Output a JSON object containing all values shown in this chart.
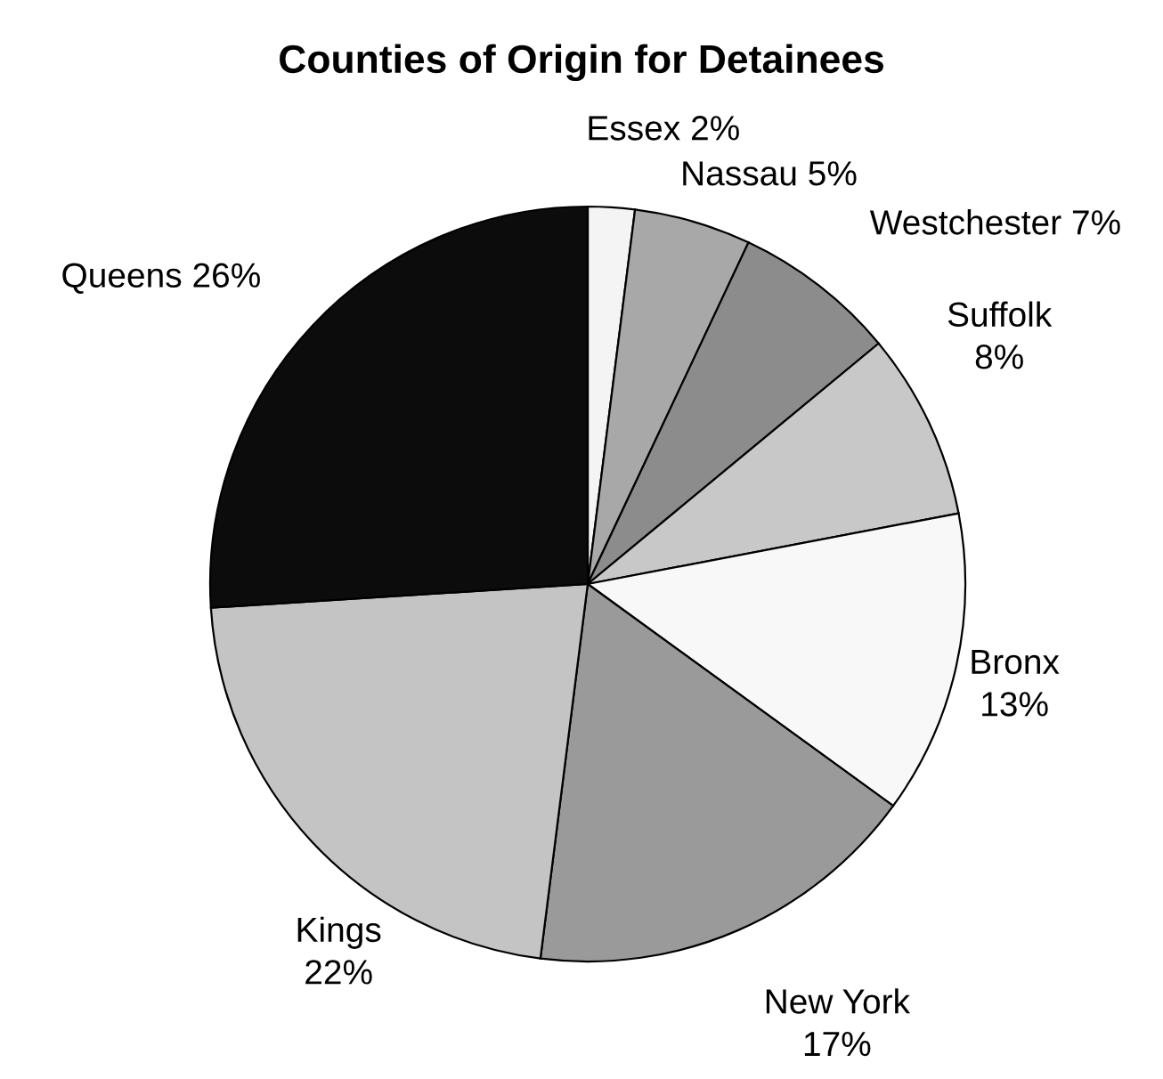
{
  "chart_data": {
    "type": "pie",
    "title": "Counties of Origin for Detainees",
    "categories": [
      "Essex",
      "Nassau",
      "Westchester",
      "Suffolk",
      "Bronx",
      "New York",
      "Kings",
      "Queens"
    ],
    "values": [
      2,
      5,
      7,
      8,
      13,
      17,
      22,
      26
    ],
    "value_labels": [
      "2%",
      "5%",
      "7%",
      "8%",
      "13%",
      "17%",
      "22%",
      "26%"
    ],
    "colors": [
      "#f4f4f4",
      "#a8a8a8",
      "#8c8c8c",
      "#c8c8c8",
      "#f8f8f8",
      "#9a9a9a",
      "#c4c4c4",
      "#0c0c0c"
    ]
  }
}
